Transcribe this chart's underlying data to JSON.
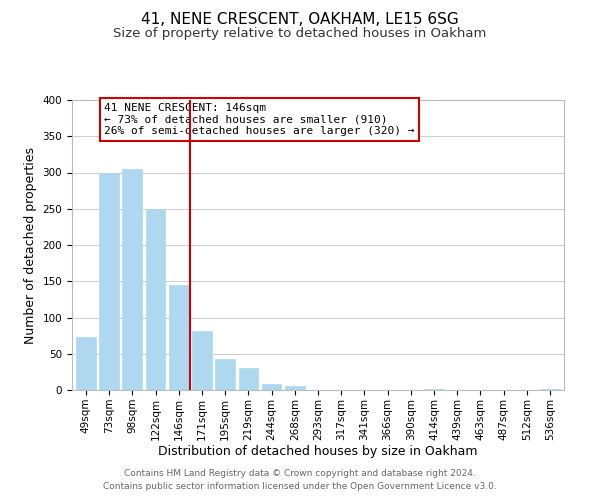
{
  "title": "41, NENE CRESCENT, OAKHAM, LE15 6SG",
  "subtitle": "Size of property relative to detached houses in Oakham",
  "xlabel": "Distribution of detached houses by size in Oakham",
  "ylabel": "Number of detached properties",
  "bar_labels": [
    "49sqm",
    "73sqm",
    "98sqm",
    "122sqm",
    "146sqm",
    "171sqm",
    "195sqm",
    "219sqm",
    "244sqm",
    "268sqm",
    "293sqm",
    "317sqm",
    "341sqm",
    "366sqm",
    "390sqm",
    "414sqm",
    "439sqm",
    "463sqm",
    "487sqm",
    "512sqm",
    "536sqm"
  ],
  "bar_values": [
    73,
    300,
    305,
    250,
    145,
    82,
    43,
    31,
    8,
    5,
    0,
    0,
    0,
    0,
    0,
    2,
    0,
    0,
    0,
    0,
    2
  ],
  "bar_color": "#add8f0",
  "bar_edge_color": "#add8f0",
  "highlight_index": 4,
  "highlight_line_color": "#cc0000",
  "annotation_title": "41 NENE CRESCENT: 146sqm",
  "annotation_line1": "← 73% of detached houses are smaller (910)",
  "annotation_line2": "26% of semi-detached houses are larger (320) →",
  "ylim": [
    0,
    400
  ],
  "yticks": [
    0,
    50,
    100,
    150,
    200,
    250,
    300,
    350,
    400
  ],
  "footer_line1": "Contains HM Land Registry data © Crown copyright and database right 2024.",
  "footer_line2": "Contains public sector information licensed under the Open Government Licence v3.0.",
  "background_color": "#ffffff",
  "grid_color": "#cccccc",
  "title_fontsize": 11,
  "subtitle_fontsize": 9.5,
  "axis_label_fontsize": 9,
  "tick_fontsize": 7.5,
  "footer_fontsize": 6.5,
  "annotation_fontsize": 8
}
